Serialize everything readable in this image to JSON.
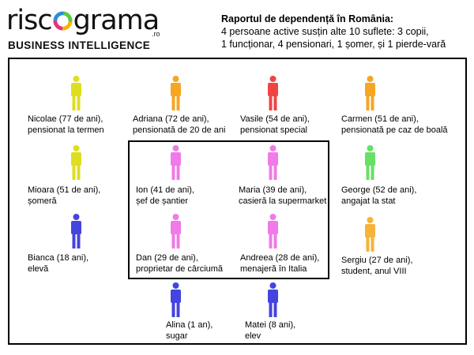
{
  "logo": {
    "word_start": "risc",
    "word_end": "grama",
    "domain_suffix": ".ro",
    "tagline": "BUSINESS INTELLIGENCE",
    "icon": "ring-logo-icon"
  },
  "header": {
    "title": "Raportul de dependență în România:",
    "lines": [
      "4 persoane active susțin alte 10 suflete: 3 copii,",
      "1 funcționar, 4 pensionari, 1 șomer, și 1 pierde-vară"
    ]
  },
  "colors": {
    "pensioner": "#f5a623",
    "special_pensioner": "#f04040",
    "unemployed": "#d4d42a",
    "active": "#f07ae8",
    "state_employee": "#66e066",
    "child": "#4040e0",
    "idler": "#f5b33a"
  },
  "people": [
    {
      "line1": "Nicolae (77 de ani),",
      "line2": "pensionat la termen",
      "color": "#dede20",
      "icon": "person-icon"
    },
    {
      "line1": "Adriana (72 de ani),",
      "line2": "pensionată de 20 de ani",
      "color": "#f5a623",
      "icon": "person-icon"
    },
    {
      "line1": "Vasile (54 de ani),",
      "line2": "pensionat special",
      "color": "#f04444",
      "icon": "person-icon"
    },
    {
      "line1": "Carmen (51 de ani),",
      "line2": "pensionată pe caz de boală",
      "color": "#f5a623",
      "icon": "person-icon"
    },
    {
      "line1": "Mioara (51 de ani),",
      "line2": "șomeră",
      "color": "#dede20",
      "icon": "person-icon"
    },
    {
      "line1": "Ion (41 de ani),",
      "line2": "șef de șantier",
      "color": "#f07ae8",
      "icon": "person-icon"
    },
    {
      "line1": "Maria (39 de ani),",
      "line2": "casieră la supermarket",
      "color": "#f07ae8",
      "icon": "person-icon"
    },
    {
      "line1": "George (52 de ani),",
      "line2": "angajat la stat",
      "color": "#66e066",
      "icon": "person-icon"
    },
    {
      "line1": "Bianca (18 ani),",
      "line2": "elevă",
      "color": "#4444e0",
      "icon": "person-icon"
    },
    {
      "line1": "Dan (29 de ani),",
      "line2": "proprietar de cârciumă",
      "color": "#f07ae8",
      "icon": "person-icon"
    },
    {
      "line1": "Andreea (28 de ani),",
      "line2": "menajeră în Italia",
      "color": "#f07ae8",
      "icon": "person-icon"
    },
    {
      "line1": "Sergiu (27 de ani),",
      "line2": "student, anul VIII",
      "color": "#f5b33a",
      "icon": "person-icon"
    },
    {
      "line1": "Alina (1 an),",
      "line2": "sugar",
      "color": "#4444e0",
      "icon": "person-icon"
    },
    {
      "line1": "Matei (8 ani),",
      "line2": "elev",
      "color": "#4444e0",
      "icon": "person-icon"
    }
  ]
}
